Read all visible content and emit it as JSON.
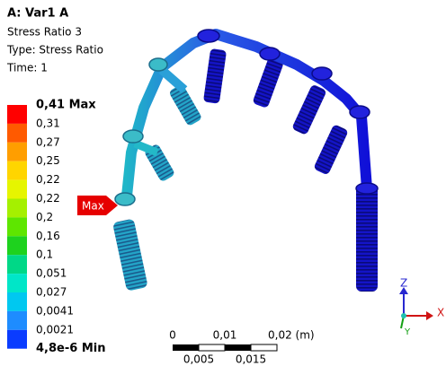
{
  "header": {
    "title": "A: Var1 A",
    "lines": [
      "Stress Ratio 3",
      "Type: Stress Ratio",
      "Time: 1"
    ]
  },
  "legend": {
    "labels": [
      "0,41 Max",
      "0,31",
      "0,27",
      "0,25",
      "0,22",
      "0,22",
      "0,2",
      "0,16",
      "0,1",
      "0,051",
      "0,027",
      "0,0041",
      "0,0021",
      "4,8e-6 Min"
    ],
    "colors": [
      "#ff0000",
      "#ff5a00",
      "#ff9e00",
      "#ffd500",
      "#e6f500",
      "#a5f000",
      "#5ee600",
      "#1ed21e",
      "#00d887",
      "#00e6c8",
      "#00c8f0",
      "#1e8cff",
      "#0a3cff"
    ]
  },
  "probe": {
    "label": "Max"
  },
  "scale_bar": {
    "top_labels": [
      "0",
      "0,01",
      "0,02 (m)"
    ],
    "bottom_labels": [
      "0,005",
      "0,015"
    ]
  },
  "triad": {
    "z": "Z",
    "x": "X",
    "y": "Y"
  }
}
